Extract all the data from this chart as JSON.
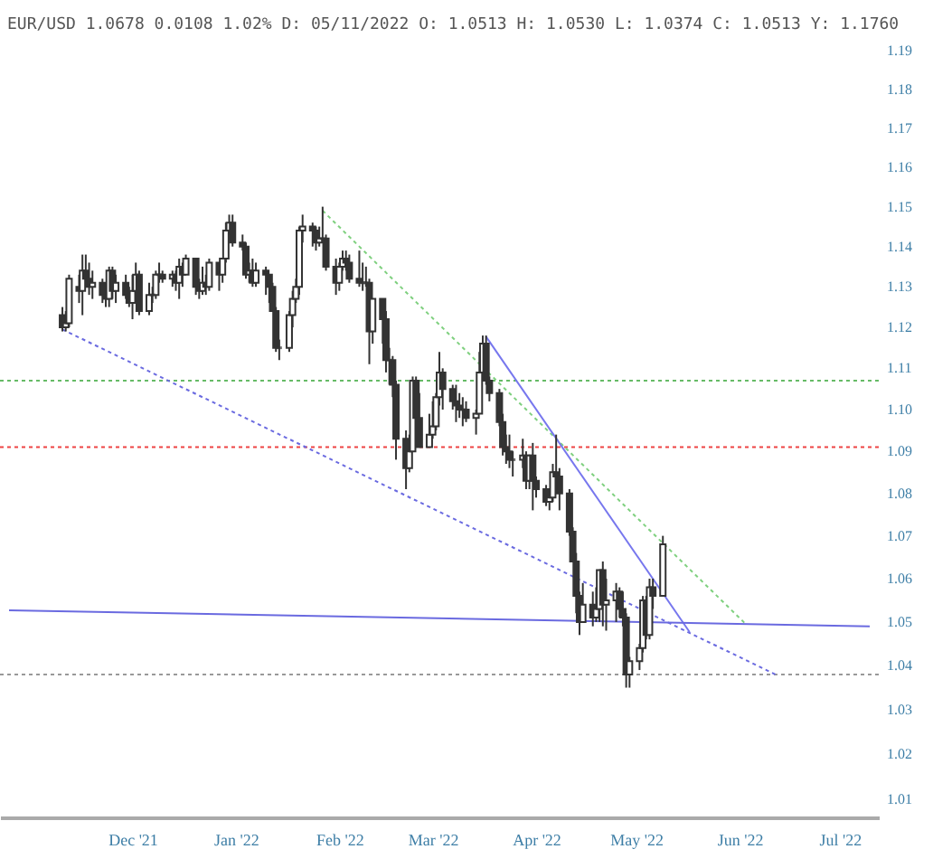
{
  "chart_data": {
    "type": "candlestick",
    "title": "EUR/USD 1.0678 0.0108 1.02% D: 05/11/2022 O: 1.0513 H: 1.0530 L: 1.0374 C: 1.0513 Y: 1.1760",
    "color": "#333333",
    "log": true,
    "grid": false,
    "xlim": [
      "2021-11-08",
      "2022-07-24"
    ],
    "xticks": [
      {
        "value": "2021-12-15",
        "label": "Dec '21"
      },
      {
        "value": "2022-01-15",
        "label": "Jan '22"
      },
      {
        "value": "2022-02-15",
        "label": "Feb '22"
      },
      {
        "value": "2022-03-15",
        "label": "Mar '22"
      },
      {
        "value": "2022-04-15",
        "label": "Apr '22"
      },
      {
        "value": "2022-05-15",
        "label": "May '22"
      },
      {
        "value": "2022-06-15",
        "label": "Jun '22"
      },
      {
        "value": "2022-07-15",
        "label": "Jul '22"
      }
    ],
    "ylim": [
      1.006,
      1.19
    ],
    "yticks": [
      1.01,
      1.02,
      1.03,
      1.04,
      1.05,
      1.06,
      1.07,
      1.08,
      1.09,
      {
        "value": 1.1,
        "label": "1.10"
      },
      1.11,
      1.12,
      1.13,
      1.14,
      1.15,
      1.16,
      1.17,
      1.18,
      1.19
    ],
    "x": [
      "2021-11-24",
      "2021-11-25",
      "2021-11-26",
      "2021-11-29",
      "2021-11-30",
      "2021-12-01",
      "2021-12-02",
      "2021-12-03",
      "2021-12-06",
      "2021-12-07",
      "2021-12-08",
      "2021-12-09",
      "2021-12-10",
      "2021-12-13",
      "2021-12-14",
      "2021-12-15",
      "2021-12-16",
      "2021-12-17",
      "2021-12-20",
      "2021-12-21",
      "2021-12-22",
      "2021-12-23",
      "2021-12-24",
      "2021-12-27",
      "2021-12-28",
      "2021-12-29",
      "2021-12-30",
      "2021-12-31",
      "2022-01-03",
      "2022-01-04",
      "2022-01-05",
      "2022-01-06",
      "2022-01-07",
      "2022-01-10",
      "2022-01-11",
      "2022-01-12",
      "2022-01-13",
      "2022-01-14",
      "2022-01-17",
      "2022-01-18",
      "2022-01-19",
      "2022-01-20",
      "2022-01-21",
      "2022-01-24",
      "2022-01-25",
      "2022-01-26",
      "2022-01-27",
      "2022-01-28",
      "2022-01-31",
      "2022-02-01",
      "2022-02-02",
      "2022-02-03",
      "2022-02-04",
      "2022-02-07",
      "2022-02-08",
      "2022-02-09",
      "2022-02-10",
      "2022-02-11",
      "2022-02-14",
      "2022-02-15",
      "2022-02-16",
      "2022-02-17",
      "2022-02-18",
      "2022-02-21",
      "2022-02-22",
      "2022-02-23",
      "2022-02-24",
      "2022-02-25",
      "2022-02-28",
      "2022-03-01",
      "2022-03-02",
      "2022-03-03",
      "2022-03-04",
      "2022-03-07",
      "2022-03-08",
      "2022-03-09",
      "2022-03-10",
      "2022-03-11",
      "2022-03-14",
      "2022-03-15",
      "2022-03-16",
      "2022-03-17",
      "2022-03-18",
      "2022-03-21",
      "2022-03-22",
      "2022-03-23",
      "2022-03-24",
      "2022-03-25",
      "2022-03-28",
      "2022-03-29",
      "2022-03-30",
      "2022-03-31",
      "2022-04-01",
      "2022-04-04",
      "2022-04-05",
      "2022-04-06",
      "2022-04-07",
      "2022-04-08",
      "2022-04-11",
      "2022-04-12",
      "2022-04-13",
      "2022-04-14",
      "2022-04-15",
      "2022-04-18",
      "2022-04-19",
      "2022-04-20",
      "2022-04-21",
      "2022-04-22",
      "2022-04-25",
      "2022-04-26",
      "2022-04-27",
      "2022-04-28",
      "2022-04-29",
      "2022-05-02",
      "2022-05-03",
      "2022-05-04",
      "2022-05-05",
      "2022-05-06",
      "2022-05-09",
      "2022-05-10",
      "2022-05-11",
      "2022-05-12",
      "2022-05-13",
      "2022-05-16",
      "2022-05-17",
      "2022-05-18",
      "2022-05-19",
      "2022-05-20",
      "2022-05-23"
    ],
    "ohlc": [
      [
        1.123,
        1.125,
        1.119,
        1.12
      ],
      [
        1.12,
        1.124,
        1.119,
        1.121
      ],
      [
        1.121,
        1.133,
        1.12,
        1.132
      ],
      [
        1.13,
        1.133,
        1.126,
        1.129
      ],
      [
        1.129,
        1.138,
        1.123,
        1.134
      ],
      [
        1.134,
        1.138,
        1.13,
        1.132
      ],
      [
        1.132,
        1.136,
        1.128,
        1.13
      ],
      [
        1.13,
        1.134,
        1.127,
        1.131
      ],
      [
        1.131,
        1.132,
        1.126,
        1.128
      ],
      [
        1.128,
        1.13,
        1.125,
        1.127
      ],
      [
        1.127,
        1.135,
        1.125,
        1.134
      ],
      [
        1.134,
        1.135,
        1.127,
        1.129
      ],
      [
        1.129,
        1.133,
        1.126,
        1.131
      ],
      [
        1.131,
        1.133,
        1.127,
        1.128
      ],
      [
        1.128,
        1.13,
        1.125,
        1.126
      ],
      [
        1.126,
        1.133,
        1.122,
        1.129
      ],
      [
        1.129,
        1.136,
        1.128,
        1.133
      ],
      [
        1.133,
        1.134,
        1.123,
        1.124
      ],
      [
        1.124,
        1.131,
        1.123,
        1.128
      ],
      [
        1.128,
        1.13,
        1.126,
        1.128
      ],
      [
        1.128,
        1.134,
        1.127,
        1.133
      ],
      [
        1.133,
        1.136,
        1.131,
        1.133
      ],
      [
        1.133,
        1.134,
        1.131,
        1.132
      ],
      [
        1.132,
        1.134,
        1.13,
        1.133
      ],
      [
        1.133,
        1.134,
        1.129,
        1.131
      ],
      [
        1.131,
        1.137,
        1.127,
        1.135
      ],
      [
        1.135,
        1.136,
        1.13,
        1.133
      ],
      [
        1.133,
        1.138,
        1.133,
        1.137
      ],
      [
        1.137,
        1.137,
        1.128,
        1.13
      ],
      [
        1.13,
        1.132,
        1.127,
        1.129
      ],
      [
        1.129,
        1.135,
        1.128,
        1.131
      ],
      [
        1.131,
        1.133,
        1.128,
        1.13
      ],
      [
        1.13,
        1.137,
        1.129,
        1.136
      ],
      [
        1.136,
        1.136,
        1.129,
        1.133
      ],
      [
        1.133,
        1.137,
        1.131,
        1.137
      ],
      [
        1.137,
        1.146,
        1.136,
        1.144
      ],
      [
        1.144,
        1.148,
        1.143,
        1.146
      ],
      [
        1.146,
        1.148,
        1.14,
        1.141
      ],
      [
        1.141,
        1.143,
        1.139,
        1.14
      ],
      [
        1.14,
        1.141,
        1.132,
        1.133
      ],
      [
        1.133,
        1.136,
        1.131,
        1.134
      ],
      [
        1.134,
        1.137,
        1.13,
        1.131
      ],
      [
        1.131,
        1.136,
        1.13,
        1.134
      ],
      [
        1.134,
        1.135,
        1.128,
        1.133
      ],
      [
        1.133,
        1.133,
        1.126,
        1.13
      ],
      [
        1.13,
        1.131,
        1.124,
        1.124
      ],
      [
        1.124,
        1.125,
        1.114,
        1.115
      ],
      [
        1.115,
        1.117,
        1.112,
        1.115
      ],
      [
        1.115,
        1.124,
        1.114,
        1.123
      ],
      [
        1.123,
        1.129,
        1.12,
        1.127
      ],
      [
        1.127,
        1.132,
        1.126,
        1.13
      ],
      [
        1.13,
        1.145,
        1.128,
        1.144
      ],
      [
        1.144,
        1.148,
        1.141,
        1.145
      ],
      [
        1.145,
        1.146,
        1.14,
        1.144
      ],
      [
        1.144,
        1.145,
        1.139,
        1.141
      ],
      [
        1.141,
        1.145,
        1.14,
        1.142
      ],
      [
        1.142,
        1.15,
        1.141,
        1.142
      ],
      [
        1.142,
        1.143,
        1.134,
        1.135
      ],
      [
        1.135,
        1.137,
        1.128,
        1.131
      ],
      [
        1.131,
        1.136,
        1.129,
        1.135
      ],
      [
        1.135,
        1.139,
        1.134,
        1.137
      ],
      [
        1.137,
        1.139,
        1.134,
        1.136
      ],
      [
        1.136,
        1.138,
        1.131,
        1.132
      ],
      [
        1.132,
        1.139,
        1.13,
        1.131
      ],
      [
        1.131,
        1.136,
        1.129,
        1.131
      ],
      [
        1.131,
        1.135,
        1.13,
        1.131
      ],
      [
        1.131,
        1.132,
        1.111,
        1.119
      ],
      [
        1.119,
        1.127,
        1.116,
        1.127
      ],
      [
        1.127,
        1.127,
        1.116,
        1.122
      ],
      [
        1.122,
        1.124,
        1.109,
        1.112
      ],
      [
        1.112,
        1.115,
        1.106,
        1.112
      ],
      [
        1.112,
        1.113,
        1.103,
        1.106
      ],
      [
        1.106,
        1.107,
        1.088,
        1.093
      ],
      [
        1.093,
        1.095,
        1.081,
        1.086
      ],
      [
        1.086,
        1.094,
        1.085,
        1.09
      ],
      [
        1.09,
        1.108,
        1.09,
        1.107
      ],
      [
        1.107,
        1.108,
        1.096,
        1.098
      ],
      [
        1.098,
        1.104,
        1.091,
        1.091
      ],
      [
        1.091,
        1.099,
        1.091,
        1.094
      ],
      [
        1.094,
        1.102,
        1.093,
        1.096
      ],
      [
        1.096,
        1.104,
        1.095,
        1.103
      ],
      [
        1.103,
        1.114,
        1.101,
        1.109
      ],
      [
        1.109,
        1.11,
        1.1,
        1.105
      ],
      [
        1.105,
        1.106,
        1.1,
        1.102
      ],
      [
        1.102,
        1.106,
        1.097,
        1.101
      ],
      [
        1.101,
        1.104,
        1.098,
        1.1
      ],
      [
        1.1,
        1.103,
        1.096,
        1.1
      ],
      [
        1.1,
        1.102,
        1.097,
        1.098
      ],
      [
        1.098,
        1.1,
        1.094,
        1.099
      ],
      [
        1.099,
        1.114,
        1.099,
        1.109
      ],
      [
        1.109,
        1.118,
        1.108,
        1.116
      ],
      [
        1.116,
        1.118,
        1.106,
        1.107
      ],
      [
        1.107,
        1.108,
        1.102,
        1.104
      ],
      [
        1.104,
        1.105,
        1.096,
        1.097
      ],
      [
        1.097,
        1.099,
        1.089,
        1.091
      ],
      [
        1.091,
        1.094,
        1.087,
        1.09
      ],
      [
        1.09,
        1.094,
        1.086,
        1.088
      ],
      [
        1.088,
        1.09,
        1.084,
        1.088
      ],
      [
        1.088,
        1.093,
        1.086,
        1.089
      ],
      [
        1.089,
        1.09,
        1.081,
        1.083
      ],
      [
        1.083,
        1.089,
        1.081,
        1.089
      ],
      [
        1.089,
        1.092,
        1.076,
        1.083
      ],
      [
        1.083,
        1.084,
        1.079,
        1.081
      ],
      [
        1.081,
        1.082,
        1.077,
        1.078
      ],
      [
        1.078,
        1.08,
        1.076,
        1.079
      ],
      [
        1.079,
        1.087,
        1.078,
        1.085
      ],
      [
        1.085,
        1.094,
        1.082,
        1.084
      ],
      [
        1.084,
        1.086,
        1.076,
        1.08
      ],
      [
        1.08,
        1.081,
        1.07,
        1.071
      ],
      [
        1.071,
        1.072,
        1.064,
        1.064
      ],
      [
        1.064,
        1.066,
        1.052,
        1.056
      ],
      [
        1.056,
        1.057,
        1.047,
        1.05
      ],
      [
        1.05,
        1.059,
        1.05,
        1.054
      ],
      [
        1.054,
        1.057,
        1.049,
        1.051
      ],
      [
        1.051,
        1.058,
        1.05,
        1.053
      ],
      [
        1.053,
        1.062,
        1.05,
        1.062
      ],
      [
        1.062,
        1.064,
        1.049,
        1.054
      ],
      [
        1.054,
        1.06,
        1.048,
        1.055
      ],
      [
        1.055,
        1.059,
        1.05,
        1.057
      ],
      [
        1.057,
        1.058,
        1.051,
        1.053
      ],
      [
        1.053,
        1.057,
        1.049,
        1.051
      ],
      [
        1.051,
        1.052,
        1.035,
        1.038
      ],
      [
        1.038,
        1.042,
        1.035,
        1.041
      ],
      [
        1.041,
        1.045,
        1.039,
        1.044
      ],
      [
        1.044,
        1.056,
        1.043,
        1.055
      ],
      [
        1.055,
        1.056,
        1.046,
        1.047
      ],
      [
        1.047,
        1.06,
        1.046,
        1.058
      ],
      [
        1.058,
        1.06,
        1.053,
        1.056
      ],
      [
        1.056,
        1.07,
        1.056,
        1.068
      ]
    ],
    "series": [
      {
        "type": "line",
        "color": "#6a6ae0",
        "line_style": "dotted",
        "x": [
          "2021-11-24",
          "2022-06-26"
        ],
        "values": [
          1.1195,
          1.0379
        ]
      },
      {
        "type": "line",
        "color": "#7fd07f",
        "line_style": "dotted",
        "x": [
          "2022-02-10",
          "2022-06-17"
        ],
        "values": [
          1.149,
          1.0494
        ]
      },
      {
        "type": "line",
        "color": "#7777ee",
        "line_style": "solid",
        "x": [
          "2022-03-31",
          "2022-05-31"
        ],
        "values": [
          1.1177,
          1.0477
        ]
      },
      {
        "type": "line",
        "color": "#6a6ae0",
        "line_style": "solid",
        "x": [
          "2021-11-08",
          "2022-07-24"
        ],
        "values": [
          1.0527,
          1.049
        ]
      }
    ],
    "ref_lines": [
      {
        "axis": "y",
        "value": 1.107,
        "color": "#66bb66",
        "line_style": "dotted"
      },
      {
        "axis": "y",
        "value": 1.091,
        "color": "#ee4444",
        "line_style": "dotted"
      },
      {
        "axis": "y",
        "value": 1.038,
        "color": "#999999",
        "line_style": "dotted"
      }
    ]
  }
}
